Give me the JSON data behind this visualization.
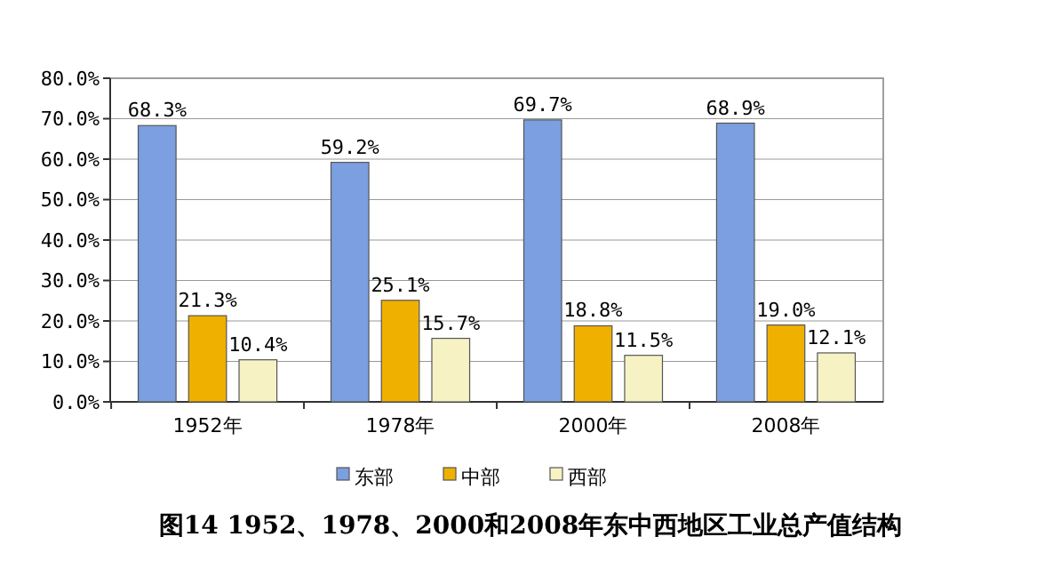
{
  "chart_data": {
    "type": "bar",
    "title": "图14 1952、1978、2000和2008年东中西地区工业总产值结构",
    "categories": [
      "1952年",
      "1978年",
      "2000年",
      "2008年"
    ],
    "series": [
      {
        "name": "东部",
        "color": "#7b9fe0",
        "values": [
          68.3,
          59.2,
          69.7,
          68.9
        ],
        "value_labels": [
          "68.3%",
          "59.2%",
          "69.7%",
          "68.9%"
        ]
      },
      {
        "name": "中部",
        "color": "#f0b000",
        "values": [
          21.3,
          25.1,
          18.8,
          19.0
        ],
        "value_labels": [
          "21.3%",
          "25.1%",
          "18.8%",
          "19.0%"
        ]
      },
      {
        "name": "西部",
        "color": "#f7f2c4",
        "values": [
          10.4,
          15.7,
          11.5,
          12.1
        ],
        "value_labels": [
          "10.4%",
          "15.7%",
          "11.5%",
          "12.1%"
        ]
      }
    ],
    "ylim": [
      0,
      80
    ],
    "yticks": [
      {
        "value": 0,
        "label": "0.0%"
      },
      {
        "value": 10,
        "label": "10.0%"
      },
      {
        "value": 20,
        "label": "20.0%"
      },
      {
        "value": 30,
        "label": "30.0%"
      },
      {
        "value": 40,
        "label": "40.0%"
      },
      {
        "value": 50,
        "label": "50.0%"
      },
      {
        "value": 60,
        "label": "60.0%"
      },
      {
        "value": 70,
        "label": "70.0%"
      },
      {
        "value": 80,
        "label": "80.0%"
      }
    ],
    "grid": "y",
    "legend": "bottom"
  }
}
